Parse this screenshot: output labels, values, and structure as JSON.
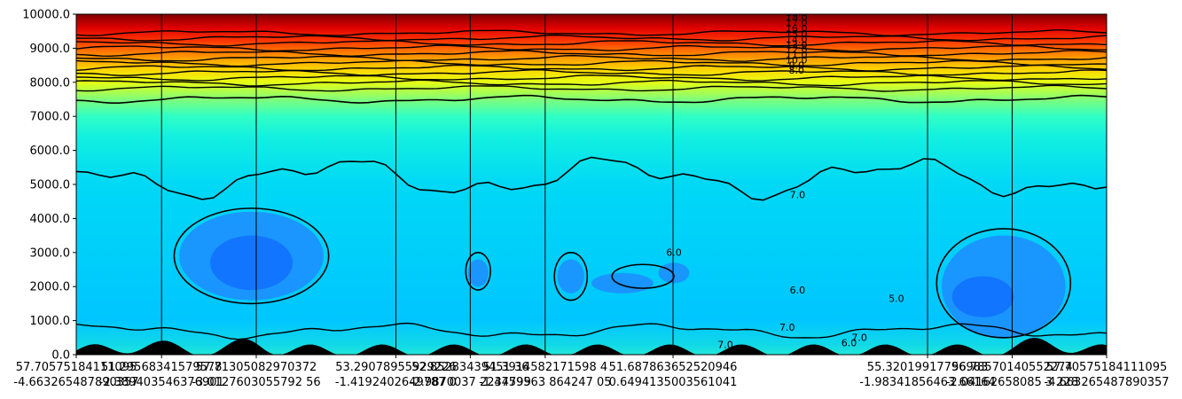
{
  "chart_data": {
    "type": "heatmap",
    "subtype": "filled-contour-cross-section",
    "title": "",
    "xlabel": "",
    "ylabel": "",
    "colormap": "jet",
    "ylim": [
      0,
      10000
    ],
    "yticks": [
      "0.0",
      "1000.0",
      "2000.0",
      "3000.0",
      "4000.0",
      "5000.0",
      "6000.0",
      "7000.0",
      "8000.0",
      "9000.0",
      "10000.0"
    ],
    "section_points": [
      {
        "pos": 0.0,
        "lat": "57.70575184111095",
        "lon": "-4.663265487890357"
      },
      {
        "pos": 0.0828,
        "lat": "51.2956834157957",
        "lon": "-2.389403546376901"
      },
      {
        "pos": 0.1747,
        "lat": "57.7130508297 0372",
        "lon": "-3.0127603055792 56"
      },
      {
        "pos": 0.3102,
        "lat": "53.29078955929226",
        "lon": "-1.4192402649787 0"
      },
      {
        "pos": 0.3824,
        "lat": "52.85283439451 36",
        "lon": "-2.9870037 2234799"
      },
      {
        "pos": 0.4551,
        "lat": "51.3914582171598 4",
        "lon": "-1.4759563 864247 05"
      },
      {
        "pos": 0.5792,
        "lat": "51.68786365252 0946",
        "lon": "0.6494135003561041"
      },
      {
        "pos": 0.8262,
        "lat": "55.320199177969 83",
        "lon": "-1.9834185646 3 66164"
      },
      {
        "pos": 0.9083,
        "lat": "56.785701405 52 274",
        "lon": "-2.04162658085 3 2 28"
      },
      {
        "pos": 1.0,
        "lat": "57.70575184111095",
        "lon": "-4.663265487890357"
      }
    ],
    "x_tick_labels": [
      {
        "pos": 0.0,
        "text": "57.70575184111095\n-4.663265487890357"
      },
      {
        "pos": 0.0828,
        "text": "51.29568341579578\n-2.389403546376901"
      },
      {
        "pos": 0.1747,
        "text": "57.71305082970372\n-3.0127603055792 56"
      },
      {
        "pos": 0.3102,
        "text": "53.29078955929226\n-1.4192402649787 0"
      },
      {
        "pos": 0.3824,
        "text": "52.85283439451 36\n-2.9870037 2234799"
      },
      {
        "pos": 0.4551,
        "text": "51.3914582171598 4\n-1.4759563 864247 05"
      },
      {
        "pos": 0.5792,
        "text": "51.687863652520946\n0.6494135003561041"
      },
      {
        "pos": 0.8262,
        "text": "55.32019917796983\n-1.98341856463 66164"
      },
      {
        "pos": 0.9083,
        "text": "56.78570140552274\n-2.04162658085 3 228"
      },
      {
        "pos": 1.0,
        "text": "57.70575184111095\n-4.663265487890357"
      }
    ],
    "contour_levels": [
      5.0,
      6.0,
      7.0,
      8.0,
      9.0,
      10.0,
      11.0,
      12.0,
      13.0,
      14.0,
      15.0,
      16.0,
      17.0,
      18.0,
      19.0
    ],
    "contour_labels": [
      "19.0",
      "18.0",
      "17.0",
      "16.0",
      "15.0",
      "14.0",
      "13.0",
      "12.0",
      "11.0",
      "10.0",
      "9.0",
      "8.0",
      "7.0",
      "7.0",
      "7.0",
      "6.0",
      "6.0",
      "5.0",
      "7.0",
      "6.0"
    ],
    "grid": false,
    "legend": "none"
  }
}
